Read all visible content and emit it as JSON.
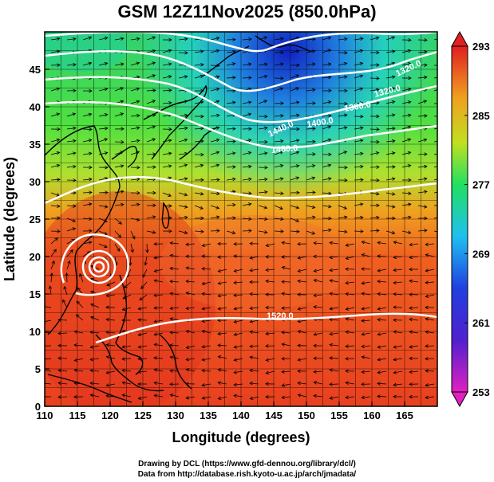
{
  "title": "GSM 12Z11Nov2025 (850.0hPa)",
  "axes": {
    "x_title": "Longitude (degrees)",
    "y_title": "Latitude  (degrees)",
    "x_ticks": [
      "110",
      "115",
      "120",
      "125",
      "130",
      "135",
      "140",
      "145",
      "150",
      "155",
      "160",
      "165"
    ],
    "y_ticks": [
      "0",
      "5",
      "10",
      "15",
      "20",
      "25",
      "30",
      "35",
      "40",
      "45"
    ],
    "x_range": [
      110,
      170
    ],
    "y_range": [
      0,
      50
    ]
  },
  "colorbar": {
    "labels": [
      "293",
      "285",
      "277",
      "269",
      "261",
      "253"
    ],
    "range": [
      253,
      293
    ],
    "colors": [
      "#e020c0",
      "#2020d0",
      "#20c0f0",
      "#20e060",
      "#c0e020",
      "#f0a020",
      "#e02020"
    ]
  },
  "contour_labels": [
    "1320.0",
    "1360.0",
    "1400.0",
    "1440.0",
    "1480.0",
    "1520.0"
  ],
  "credits": {
    "line1": "Drawing by DCL (https://www.gfd-dennou.org/library/dcl/)",
    "line2": "Data from http://database.rish.kyoto-u.ac.jp/arch/jmadata/"
  }
}
